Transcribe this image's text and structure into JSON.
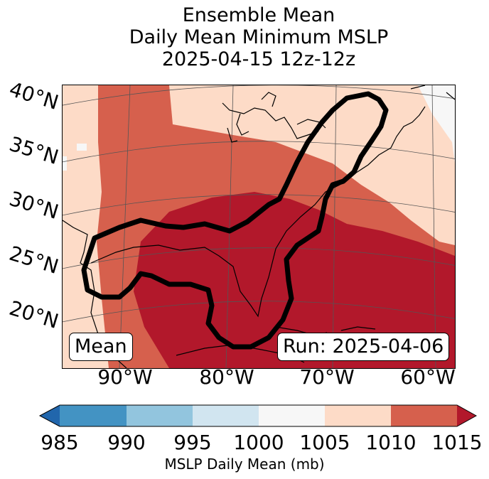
{
  "title": {
    "line1": "Ensemble Mean",
    "line2": "Daily Mean Minimum MSLP",
    "line3": "2025-04-15 12z-12z"
  },
  "latitude_labels": [
    "40°N",
    "35°N",
    "30°N",
    "25°N",
    "20°N"
  ],
  "longitude_labels": [
    "90°W",
    "80°W",
    "70°W",
    "60°W"
  ],
  "insets": {
    "left": "Mean",
    "right": "Run: 2025-04-06"
  },
  "colorbar": {
    "label": "MSLP Daily Mean (mb)",
    "ticks": [
      "985",
      "990",
      "995",
      "1000",
      "1005",
      "1010",
      "1015"
    ],
    "colors": [
      "#2166ac",
      "#4393c3",
      "#92c5de",
      "#d1e5f0",
      "#f7f7f7",
      "#fddbc7",
      "#d6604d",
      "#b2182b"
    ]
  },
  "legend_levels": {
    "lt_985": "#2166ac",
    "985_990": "#4393c3",
    "990_995": "#92c5de",
    "995_1000": "#d1e5f0",
    "1000_1005": "#f7f7f7",
    "1005_1010": "#fddbc7",
    "1010_1015": "#d6604d",
    "gt_1015": "#b2182b"
  }
}
